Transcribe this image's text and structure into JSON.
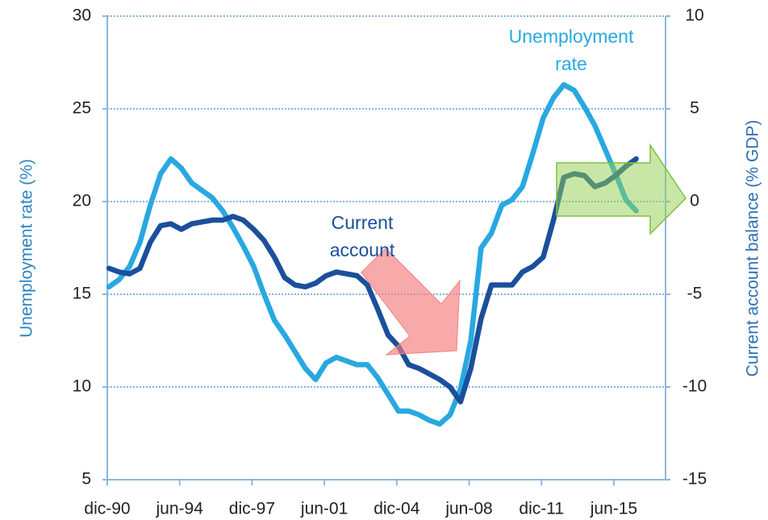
{
  "chart_data": {
    "type": "line",
    "y_label": "Unemployment rate (%)",
    "y2_label": "Current account balance (% GDP)",
    "annotations": [
      {
        "lines": [
          "Unemployment",
          "rate"
        ],
        "color": "#29a8e0"
      },
      {
        "lines": [
          "Current",
          "account"
        ],
        "color": "#1b4f9c"
      }
    ],
    "x": [
      1991.0,
      1991.5,
      1992.0,
      1992.5,
      1993.0,
      1993.5,
      1994.0,
      1994.5,
      1995.0,
      1995.5,
      1996.0,
      1996.5,
      1997.0,
      1997.5,
      1998.0,
      1998.5,
      1999.0,
      1999.5,
      2000.0,
      2000.5,
      2001.0,
      2001.5,
      2002.0,
      2002.5,
      2003.0,
      2003.5,
      2004.0,
      2004.5,
      2005.0,
      2005.5,
      2006.0,
      2006.5,
      2007.0,
      2007.5,
      2008.0,
      2008.5,
      2009.0,
      2009.5,
      2010.0,
      2010.5,
      2011.0,
      2011.5,
      2012.0,
      2012.5,
      2013.0,
      2013.5,
      2014.0,
      2014.5,
      2015.0,
      2015.5,
      2016.0,
      2016.5
    ],
    "series": [
      {
        "name": "Unemployment rate",
        "color": "#29a8e0",
        "axis": "y",
        "values": [
          15.4,
          15.8,
          16.5,
          17.8,
          19.8,
          21.5,
          22.3,
          21.8,
          21.0,
          20.6,
          20.2,
          19.5,
          18.6,
          17.6,
          16.5,
          15.0,
          13.6,
          12.8,
          11.9,
          11.0,
          10.4,
          11.3,
          11.6,
          11.4,
          11.2,
          11.2,
          10.5,
          9.6,
          8.7,
          8.7,
          8.5,
          8.2,
          8.0,
          8.5,
          9.9,
          12.5,
          17.5,
          18.3,
          19.8,
          20.1,
          20.8,
          22.6,
          24.5,
          25.6,
          26.3,
          26.0,
          25.1,
          24.1,
          22.8,
          21.5,
          20.1,
          19.5
        ]
      },
      {
        "name": "Current account",
        "color": "#1b4f9c",
        "axis": "y2",
        "values": [
          -3.6,
          -3.8,
          -3.9,
          -3.6,
          -2.2,
          -1.3,
          -1.2,
          -1.5,
          -1.2,
          -1.1,
          -1.0,
          -1.0,
          -0.8,
          -1.0,
          -1.5,
          -2.1,
          -3.0,
          -4.1,
          -4.5,
          -4.6,
          -4.4,
          -4.0,
          -3.8,
          -3.9,
          -4.0,
          -4.5,
          -5.8,
          -7.2,
          -7.8,
          -8.8,
          -9.0,
          -9.3,
          -9.6,
          -10.0,
          -10.8,
          -9.0,
          -6.3,
          -4.5,
          -4.5,
          -4.5,
          -3.8,
          -3.5,
          -3.0,
          -1.0,
          1.3,
          1.5,
          1.4,
          0.8,
          1.0,
          1.4,
          1.9,
          2.3
        ]
      }
    ],
    "xlim": [
      1990.92,
      2017.92
    ],
    "xticks": [
      {
        "value": 1990.92,
        "label": "dic-90"
      },
      {
        "value": 1994.42,
        "label": "jun-94"
      },
      {
        "value": 1997.92,
        "label": "dic-97"
      },
      {
        "value": 2001.42,
        "label": "jun-01"
      },
      {
        "value": 2004.92,
        "label": "dic-04"
      },
      {
        "value": 2008.42,
        "label": "jun-08"
      },
      {
        "value": 2011.92,
        "label": "dic-11"
      },
      {
        "value": 2015.42,
        "label": "jun-15"
      }
    ],
    "ylim": [
      5,
      30
    ],
    "yticks": [
      5,
      10,
      15,
      20,
      25,
      30
    ],
    "y2lim": [
      -15,
      10
    ],
    "y2ticks": [
      -15,
      -10,
      -5,
      0,
      5,
      10
    ],
    "grid": true
  }
}
